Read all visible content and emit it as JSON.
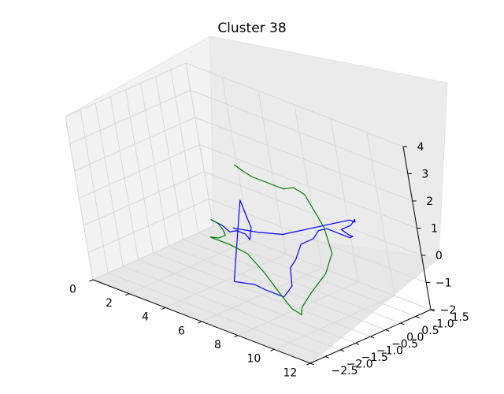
{
  "chart_data": {
    "type": "line",
    "projection": "3d",
    "title": "Cluster 38",
    "xlabel": "",
    "ylabel": "",
    "zlabel": "",
    "x_ticks": [
      0,
      2,
      4,
      6,
      8,
      10,
      12
    ],
    "y_ticks": [
      -2.5,
      -2.0,
      -1.5,
      -1.0,
      -0.5,
      0.0,
      0.5,
      1.0,
      1.5
    ],
    "y_tick_labels": [
      "−2.5",
      "−2.0",
      "−1.5",
      "−1.0",
      "−0.5",
      "0.0",
      "0.5",
      "1.0",
      "1.5"
    ],
    "z_ticks": [
      -2,
      -1,
      0,
      1,
      2,
      3,
      4
    ],
    "z_tick_labels": [
      "−2",
      "−1",
      "0",
      "1",
      "2",
      "3",
      "4"
    ],
    "xlim": [
      0,
      12
    ],
    "ylim": [
      -2.5,
      1.5
    ],
    "zlim": [
      -2,
      4
    ],
    "grid": true,
    "series": [
      {
        "color": "#0000ff",
        "points": [
          [
            2.2,
            0.3,
            -0.6
          ],
          [
            2.8,
            0.3,
            -0.65
          ],
          [
            3.4,
            0.2,
            -0.7
          ],
          [
            3.8,
            0.2,
            -0.55
          ],
          [
            4.3,
            0.2,
            -0.55
          ],
          [
            4.7,
            0.1,
            -0.6
          ],
          [
            4.7,
            0.2,
            -0.2
          ],
          [
            4.9,
            0.0,
            0.4
          ],
          [
            4.7,
            0.0,
            0.9
          ],
          [
            4.5,
            -0.3,
            -1.0
          ],
          [
            4.5,
            -0.5,
            -1.9
          ],
          [
            5.3,
            -0.3,
            -1.9
          ],
          [
            5.9,
            -0.3,
            -1.95
          ],
          [
            6.9,
            -0.3,
            -1.95
          ],
          [
            7.1,
            -0.1,
            -1.6
          ],
          [
            7.0,
            0.0,
            -1.0
          ],
          [
            7.2,
            0.1,
            -0.7
          ],
          [
            7.1,
            0.4,
            -0.3
          ],
          [
            7.3,
            0.7,
            -0.2
          ],
          [
            7.5,
            0.8,
            0.1
          ],
          [
            8.0,
            0.8,
            0.3
          ],
          [
            8.6,
            0.7,
            0.4
          ],
          [
            8.9,
            1.0,
            0.1
          ],
          [
            8.7,
            1.2,
            0.0
          ],
          [
            8.3,
            1.3,
            -0.1
          ],
          [
            7.9,
            1.3,
            0.0
          ],
          [
            8.5,
            1.3,
            0.3
          ],
          [
            8.6,
            1.4,
            0.5
          ],
          [
            8.4,
            1.5,
            0.3
          ],
          [
            8.1,
            1.5,
            0.3
          ],
          [
            6.3,
            0.3,
            -0.1
          ],
          [
            5.2,
            0.1,
            -0.2
          ],
          [
            4.0,
            0.0,
            -0.3
          ]
        ]
      },
      {
        "color": "#008000",
        "points": [
          [
            2.2,
            0.3,
            -0.6
          ],
          [
            2.6,
            0.3,
            -0.65
          ],
          [
            3.0,
            0.2,
            -0.7
          ],
          [
            3.1,
            0.2,
            -0.9
          ],
          [
            2.7,
            0.2,
            -1.1
          ],
          [
            2.4,
            0.1,
            -1.1
          ],
          [
            3.5,
            0.1,
            -1.1
          ],
          [
            4.8,
            -0.1,
            -1.0
          ],
          [
            6.0,
            -0.3,
            -1.3
          ],
          [
            7.3,
            -0.6,
            -1.6
          ],
          [
            8.4,
            -0.9,
            -1.7
          ],
          [
            9.3,
            -1.1,
            -1.6
          ],
          [
            9.2,
            -1.0,
            -1.4
          ],
          [
            9.3,
            -0.7,
            -1.0
          ],
          [
            9.6,
            -0.3,
            -0.4
          ],
          [
            9.6,
            0.0,
            0.2
          ],
          [
            9.0,
            0.2,
            0.9
          ],
          [
            8.0,
            0.3,
            1.8
          ],
          [
            7.6,
            0.2,
            2.0
          ],
          [
            7.0,
            0.2,
            1.8
          ],
          [
            6.2,
            0.1,
            1.9
          ],
          [
            5.6,
            0.0,
            2.0
          ],
          [
            5.1,
            0.0,
            2.1
          ],
          [
            4.7,
            0.0,
            2.2
          ]
        ]
      }
    ]
  }
}
